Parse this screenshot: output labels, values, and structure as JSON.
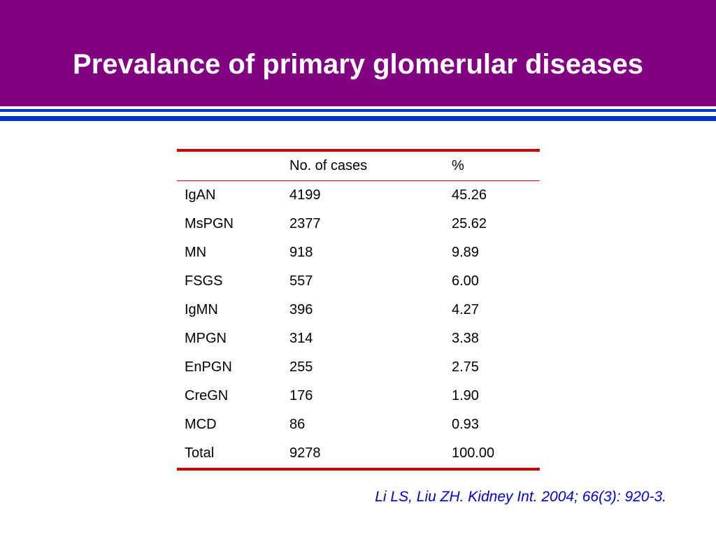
{
  "slide": {
    "title": "Prevalance of primary glomerular diseases",
    "citation": "Li LS, Liu ZH. Kidney Int. 2004; 66(3): 920-3."
  },
  "table": {
    "headers": [
      "",
      "No. of cases",
      "%"
    ],
    "rows": [
      [
        "IgAN",
        "4199",
        "45.26"
      ],
      [
        "MsPGN",
        "2377",
        "25.62"
      ],
      [
        "MN",
        "918",
        "9.89"
      ],
      [
        "FSGS",
        "557",
        "6.00"
      ],
      [
        "IgMN",
        "396",
        "4.27"
      ],
      [
        "MPGN",
        "314",
        "3.38"
      ],
      [
        "EnPGN",
        "255",
        "2.75"
      ],
      [
        "CreGN",
        "176",
        "1.90"
      ],
      [
        "MCD",
        "86",
        "0.93"
      ],
      [
        "Total",
        "9278",
        "100.00"
      ]
    ]
  },
  "colors": {
    "title_band": "#800080",
    "rules": "#0033cc",
    "table_rules": "#cc0000",
    "citation": "#0000cc"
  }
}
